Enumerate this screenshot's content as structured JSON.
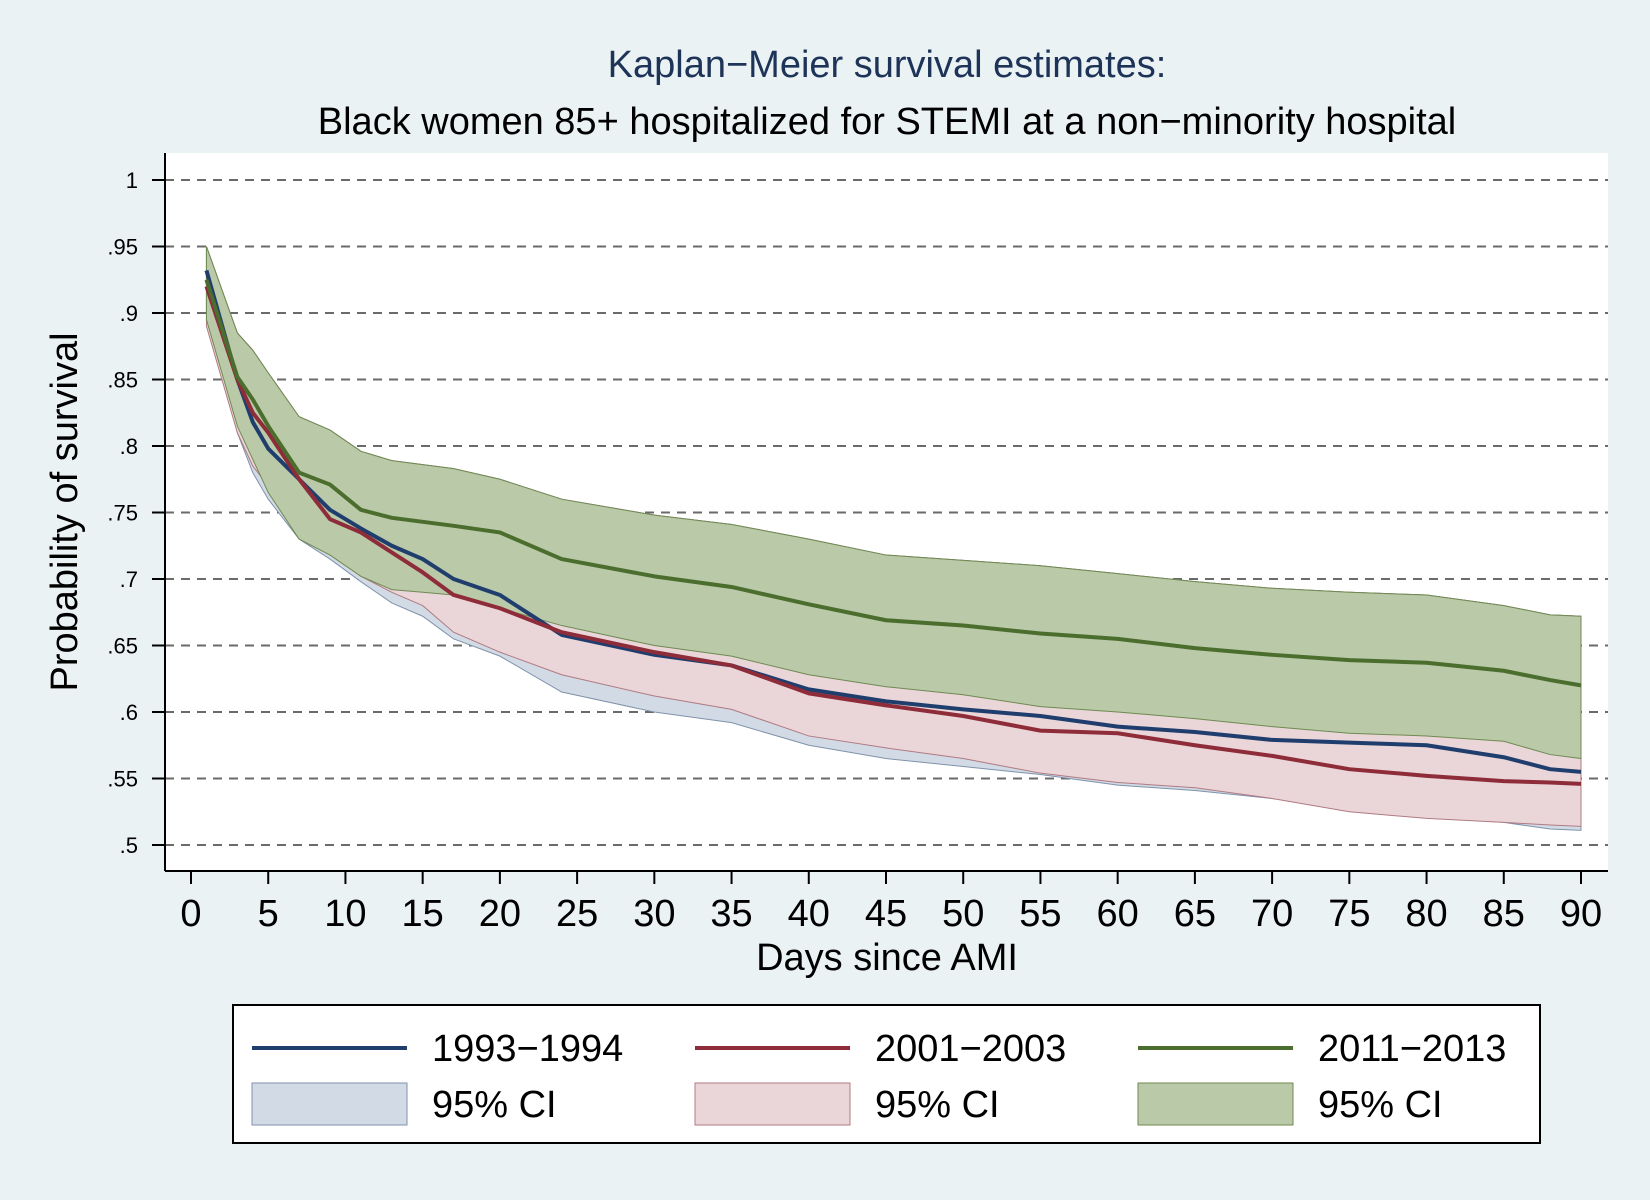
{
  "chart_data": {
    "type": "line",
    "title": "Kaplan−Meier survival estimates:",
    "subtitle": "Black women 85+ hospitalized for STEMI at a non−minority hospital",
    "xlabel": "Days since AMI",
    "ylabel": "Probability of survival",
    "xlim": [
      0,
      90
    ],
    "ylim": [
      0.5,
      1
    ],
    "x_ticks": [
      0,
      5,
      10,
      15,
      20,
      25,
      30,
      35,
      40,
      45,
      50,
      55,
      60,
      65,
      70,
      75,
      80,
      85,
      90
    ],
    "x_tick_labels": [
      "0",
      "5",
      "10",
      "15",
      "20",
      "25",
      "30",
      "35",
      "40",
      "45",
      "50",
      "55",
      "60",
      "65",
      "70",
      "75",
      "80",
      "85",
      "90"
    ],
    "y_ticks": [
      0.5,
      0.55,
      0.6,
      0.65,
      0.7,
      0.75,
      0.8,
      0.85,
      0.9,
      0.95,
      1
    ],
    "y_tick_labels": [
      ".5",
      ".55",
      ".6",
      ".65",
      ".7",
      ".75",
      ".8",
      ".85",
      ".9",
      ".95",
      "1"
    ],
    "grid": true,
    "legend_position": "bottom",
    "x": [
      1,
      3,
      4,
      5,
      7,
      9,
      11,
      13,
      15,
      17,
      20,
      24,
      30,
      35,
      40,
      45,
      50,
      55,
      60,
      65,
      70,
      75,
      80,
      85,
      88,
      90
    ],
    "series": [
      {
        "name": "1993−1994",
        "color": "#1f3e6e",
        "values": [
          0.932,
          0.85,
          0.818,
          0.798,
          0.775,
          0.752,
          0.738,
          0.725,
          0.715,
          0.7,
          0.688,
          0.658,
          0.643,
          0.635,
          0.617,
          0.608,
          0.602,
          0.597,
          0.589,
          0.585,
          0.579,
          0.577,
          0.575,
          0.566,
          0.557,
          0.555
        ],
        "ci_lower": [
          0.9,
          0.81,
          0.78,
          0.76,
          0.73,
          0.715,
          0.698,
          0.682,
          0.672,
          0.655,
          0.642,
          0.615,
          0.6,
          0.592,
          0.575,
          0.565,
          0.559,
          0.553,
          0.545,
          0.541,
          0.535,
          0.528,
          0.522,
          0.517,
          0.512,
          0.511
        ],
        "ci_upper": [
          0.95,
          0.885,
          0.872,
          0.855,
          0.822,
          0.812,
          0.796,
          0.789,
          0.786,
          0.783,
          0.775,
          0.76,
          0.748,
          0.741,
          0.73,
          0.718,
          0.714,
          0.71,
          0.704,
          0.698,
          0.693,
          0.69,
          0.688,
          0.68,
          0.673,
          0.672
        ],
        "band_color": "#d2dbe5",
        "band_stroke": "#7f92ab"
      },
      {
        "name": "2001−2003",
        "color": "#8e2c39",
        "values": [
          0.92,
          0.85,
          0.825,
          0.81,
          0.775,
          0.745,
          0.735,
          0.72,
          0.705,
          0.688,
          0.678,
          0.66,
          0.645,
          0.635,
          0.614,
          0.605,
          0.597,
          0.586,
          0.584,
          0.575,
          0.567,
          0.557,
          0.552,
          0.548,
          0.547,
          0.546
        ],
        "ci_lower": [
          0.89,
          0.81,
          0.785,
          0.77,
          0.74,
          0.72,
          0.702,
          0.69,
          0.68,
          0.66,
          0.645,
          0.628,
          0.612,
          0.602,
          0.582,
          0.573,
          0.565,
          0.554,
          0.547,
          0.543,
          0.535,
          0.525,
          0.52,
          0.517,
          0.515,
          0.514
        ],
        "ci_upper": [
          0.95,
          0.885,
          0.872,
          0.855,
          0.822,
          0.812,
          0.796,
          0.789,
          0.786,
          0.783,
          0.775,
          0.76,
          0.748,
          0.741,
          0.73,
          0.718,
          0.714,
          0.71,
          0.704,
          0.698,
          0.693,
          0.69,
          0.688,
          0.68,
          0.673,
          0.672
        ],
        "band_color": "#ead5d8",
        "band_stroke": "#b07a82"
      },
      {
        "name": "2011−2013",
        "color": "#4b6e2e",
        "values": [
          0.925,
          0.852,
          0.835,
          0.815,
          0.78,
          0.771,
          0.752,
          0.746,
          0.743,
          0.74,
          0.735,
          0.715,
          0.702,
          0.694,
          0.681,
          0.669,
          0.665,
          0.659,
          0.655,
          0.648,
          0.643,
          0.639,
          0.637,
          0.631,
          0.624,
          0.62
        ],
        "ci_lower": [
          0.895,
          0.815,
          0.79,
          0.765,
          0.73,
          0.718,
          0.702,
          0.692,
          0.69,
          0.688,
          0.678,
          0.665,
          0.65,
          0.642,
          0.628,
          0.619,
          0.613,
          0.604,
          0.6,
          0.595,
          0.589,
          0.584,
          0.582,
          0.578,
          0.568,
          0.565
        ],
        "ci_upper": [
          0.95,
          0.885,
          0.872,
          0.855,
          0.822,
          0.812,
          0.796,
          0.789,
          0.786,
          0.783,
          0.775,
          0.76,
          0.748,
          0.741,
          0.73,
          0.718,
          0.714,
          0.71,
          0.704,
          0.698,
          0.693,
          0.69,
          0.688,
          0.68,
          0.673,
          0.672
        ],
        "band_color": "#bac9a8",
        "band_stroke": "#6f8a52"
      }
    ],
    "legend": {
      "items": [
        {
          "label": "1993−1994",
          "kind": "line",
          "color": "#1f3e6e"
        },
        {
          "label": "2001−2003",
          "kind": "line",
          "color": "#8e2c39"
        },
        {
          "label": "2011−2013",
          "kind": "line",
          "color": "#4b6e2e"
        },
        {
          "label": "95% CI",
          "kind": "band",
          "color": "#d2dbe5",
          "stroke": "#7f92ab"
        },
        {
          "label": "95% CI",
          "kind": "band",
          "color": "#ead5d8",
          "stroke": "#b07a82"
        },
        {
          "label": "95% CI",
          "kind": "band",
          "color": "#bac9a8",
          "stroke": "#6f8a52"
        }
      ]
    }
  }
}
